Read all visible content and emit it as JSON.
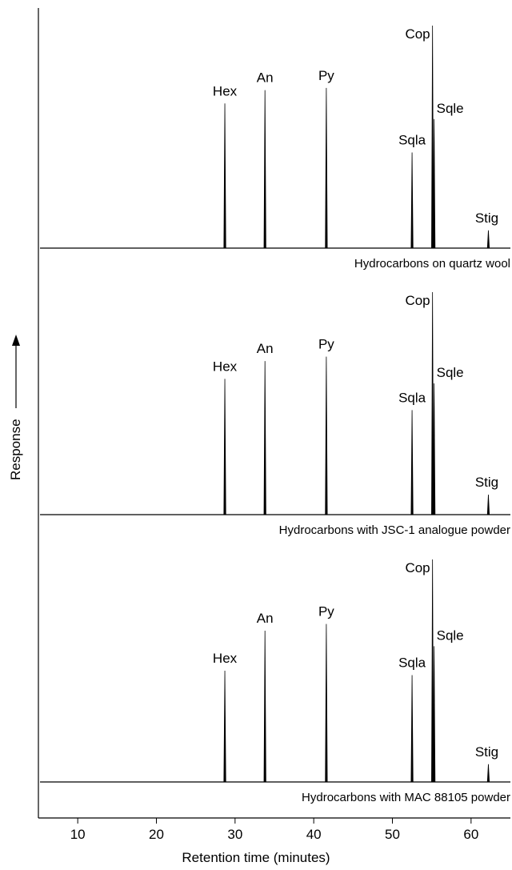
{
  "chart_data": {
    "type": "chromatogram",
    "xlabel": "Retention time (minutes)",
    "ylabel": "Response",
    "xlim": [
      5,
      65
    ],
    "xticks": [
      10,
      20,
      30,
      40,
      50,
      60
    ],
    "color": "#000000",
    "traces": [
      {
        "name": "Hydrocarbons on quartz wool",
        "labels": [
          "Hex",
          "An",
          "Py",
          "Sqla",
          "Cop",
          "Sqle",
          "Stig"
        ],
        "x": [
          28.7,
          33.8,
          41.6,
          52.5,
          55.1,
          55.3,
          62.2
        ],
        "values": [
          65,
          71,
          72,
          43,
          100,
          58,
          8
        ]
      },
      {
        "name": "Hydrocarbons with JSC-1 analogue powder",
        "labels": [
          "Hex",
          "An",
          "Py",
          "Sqla",
          "Cop",
          "Sqle",
          "Stig"
        ],
        "x": [
          28.7,
          33.8,
          41.6,
          52.5,
          55.1,
          55.3,
          62.2
        ],
        "values": [
          61,
          69,
          71,
          47,
          100,
          59,
          9
        ]
      },
      {
        "name": "Hydrocarbons with MAC 88105 powder",
        "labels": [
          "Hex",
          "An",
          "Py",
          "Sqla",
          "Cop",
          "Sqle",
          "Stig"
        ],
        "x": [
          28.7,
          33.8,
          41.6,
          52.5,
          55.1,
          55.3,
          62.2
        ],
        "values": [
          50,
          68,
          71,
          48,
          100,
          61,
          8
        ]
      }
    ]
  }
}
